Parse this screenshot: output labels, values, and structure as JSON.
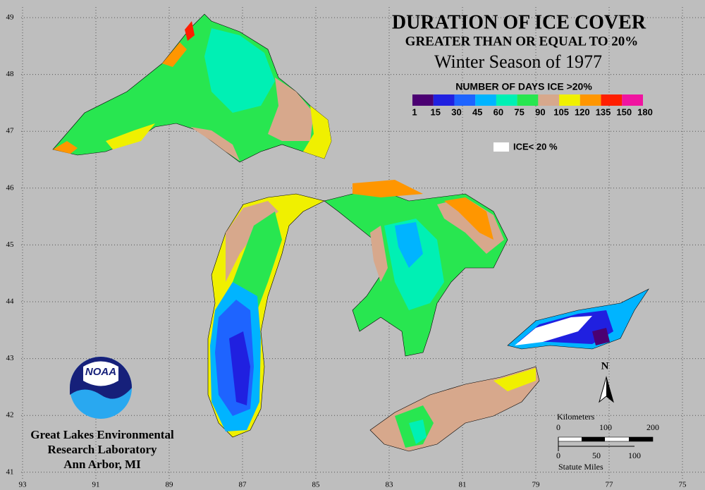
{
  "header": {
    "title": "DURATION OF ICE COVER",
    "subtitle": "GREATER THAN OR EQUAL TO 20%",
    "season": "Winter Season of 1977"
  },
  "legend": {
    "title": "NUMBER OF DAYS ICE >20%",
    "labels": [
      1,
      15,
      30,
      45,
      60,
      75,
      90,
      105,
      120,
      135,
      150,
      180
    ],
    "colors": [
      "#4b0072",
      "#2020e0",
      "#1e64ff",
      "#00b4ff",
      "#00f0b4",
      "#28e650",
      "#d7a88c",
      "#f0f000",
      "#ff9600",
      "#ff1e00",
      "#f014a0"
    ],
    "ice_label": "ICE< 20 %"
  },
  "graticule": {
    "latitudes": [
      49,
      48,
      47,
      46,
      45,
      44,
      43,
      42,
      41
    ],
    "longitudes": [
      93,
      91,
      89,
      87,
      85,
      83,
      81,
      79,
      77,
      75
    ]
  },
  "north": "N",
  "scale": {
    "km_title": "Kilometers",
    "km_labels": [
      0,
      100,
      200
    ],
    "mi_labels": [
      0,
      50,
      100
    ],
    "mi_title": "Statute Miles"
  },
  "logo": {
    "text": "NOAA"
  },
  "credit": [
    "Great Lakes Environmental",
    "Research Laboratory",
    "Ann Arbor, MI"
  ]
}
